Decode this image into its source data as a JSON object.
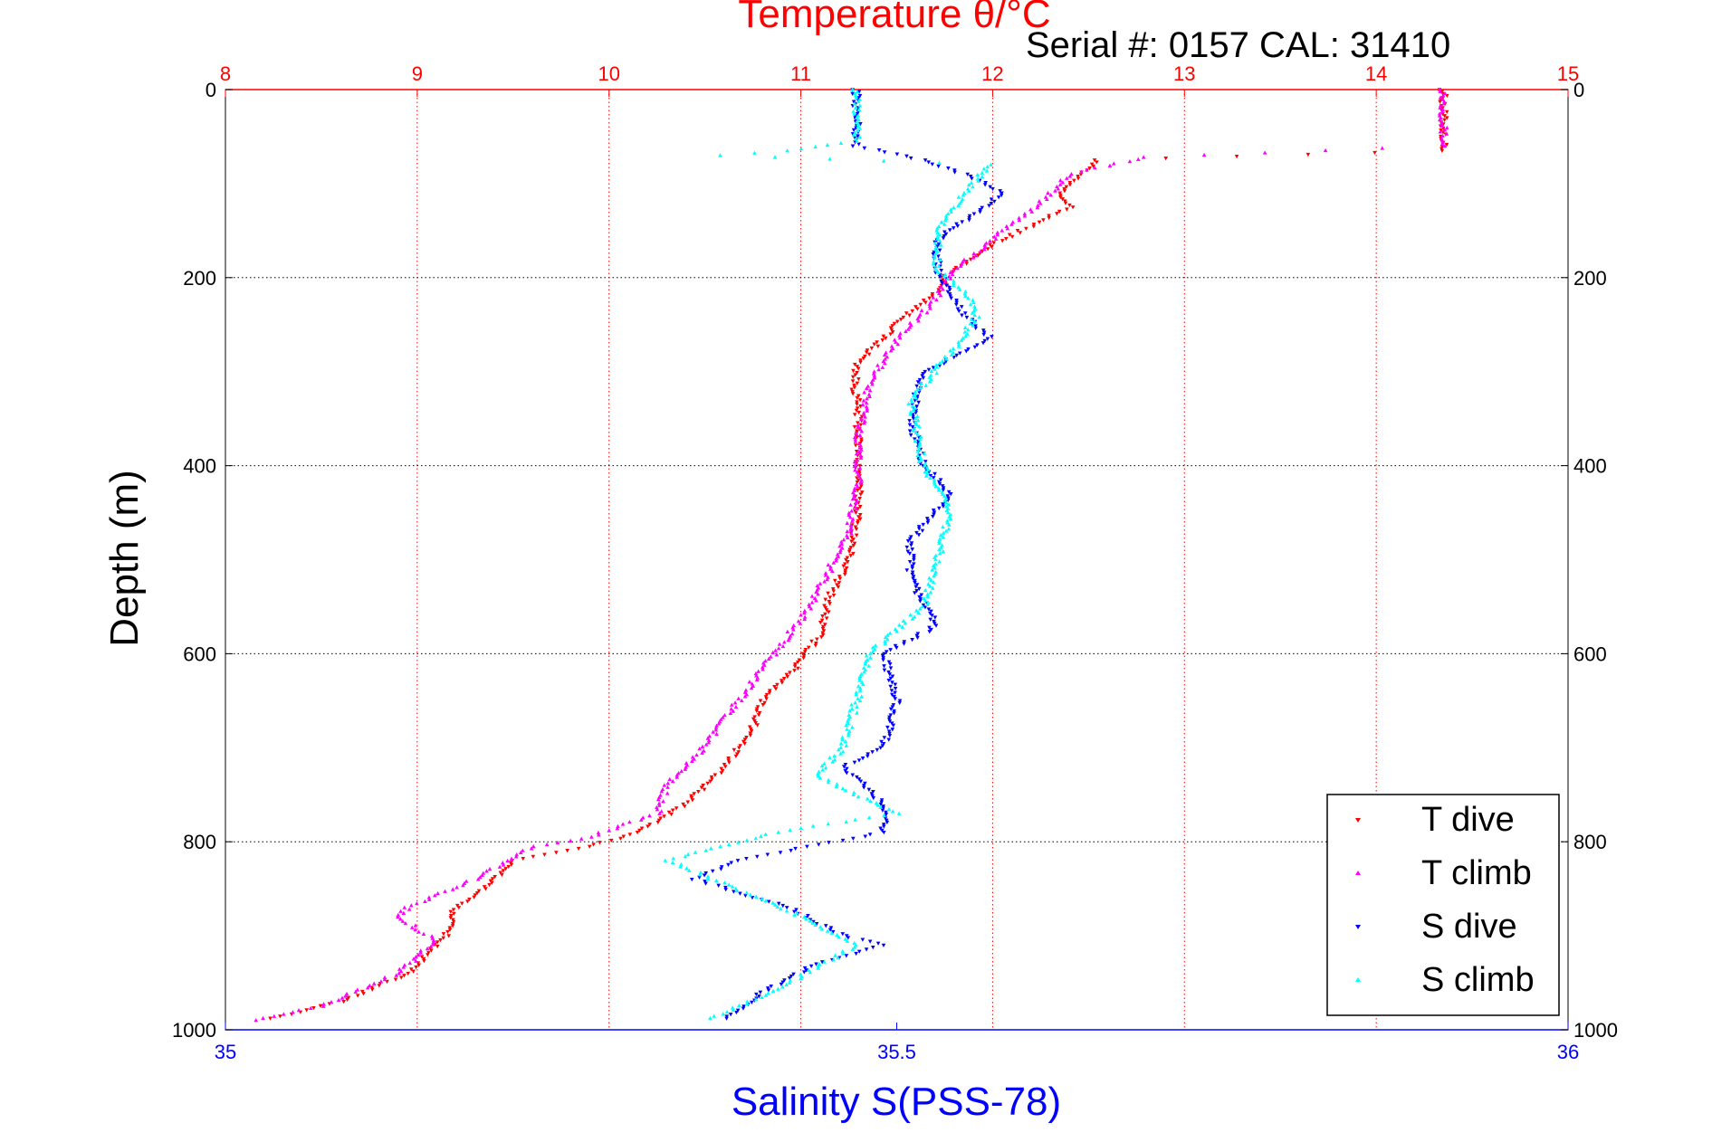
{
  "chart_data": {
    "type": "scatter",
    "title": "Temperature θ/°C",
    "subtitle": "Serial #: 0157  CAL: 31410",
    "ylabel": "Depth (m)",
    "xlabel": "Salinity S(PSS-78)",
    "temperature_axis": {
      "range": [
        8,
        15
      ],
      "ticks": [
        "8",
        "9",
        "10",
        "11",
        "12",
        "13",
        "14",
        "15"
      ],
      "color": "#ff0000"
    },
    "salinity_axis": {
      "range": [
        35,
        36
      ],
      "ticks": [
        "35",
        "35.5",
        "36"
      ],
      "color": "#0000ff"
    },
    "depth_axis": {
      "range": [
        0,
        1000
      ],
      "reversed": true,
      "ticks": [
        "0",
        "200",
        "400",
        "600",
        "800",
        "1000"
      ]
    },
    "grid": true,
    "legend": {
      "position": "bottom-right",
      "entries": [
        {
          "label": "T dive",
          "color": "#ff0000"
        },
        {
          "label": "T climb",
          "color": "#ff00ff"
        },
        {
          "label": "S dive",
          "color": "#0000ff"
        },
        {
          "label": "S climb",
          "color": "#00ffff"
        }
      ]
    },
    "series": [
      {
        "key": "T dive",
        "axis": "temperature",
        "color": "#ff0000",
        "points": [
          [
            14.35,
            0
          ],
          [
            14.35,
            30
          ],
          [
            14.35,
            65
          ],
          [
            12.55,
            75
          ],
          [
            12.45,
            90
          ],
          [
            12.35,
            110
          ],
          [
            12.4,
            125
          ],
          [
            12.15,
            150
          ],
          [
            12.0,
            165
          ],
          [
            11.85,
            185
          ],
          [
            11.75,
            200
          ],
          [
            11.72,
            215
          ],
          [
            11.55,
            240
          ],
          [
            11.45,
            260
          ],
          [
            11.3,
            290
          ],
          [
            11.28,
            310
          ],
          [
            11.3,
            350
          ],
          [
            11.3,
            400
          ],
          [
            11.3,
            450
          ],
          [
            11.25,
            500
          ],
          [
            11.15,
            540
          ],
          [
            11.1,
            580
          ],
          [
            10.95,
            620
          ],
          [
            10.8,
            650
          ],
          [
            10.75,
            680
          ],
          [
            10.6,
            720
          ],
          [
            10.4,
            760
          ],
          [
            10.15,
            790
          ],
          [
            9.9,
            805
          ],
          [
            9.5,
            820
          ],
          [
            9.35,
            850
          ],
          [
            9.2,
            870
          ],
          [
            9.15,
            900
          ],
          [
            8.95,
            940
          ],
          [
            8.6,
            970
          ],
          [
            8.2,
            990
          ]
        ]
      },
      {
        "key": "T climb",
        "axis": "temperature",
        "color": "#ff00ff",
        "points": [
          [
            14.35,
            0
          ],
          [
            14.35,
            30
          ],
          [
            14.35,
            60
          ],
          [
            12.8,
            72
          ],
          [
            12.4,
            90
          ],
          [
            12.3,
            110
          ],
          [
            12.2,
            130
          ],
          [
            12.05,
            150
          ],
          [
            11.95,
            170
          ],
          [
            11.8,
            190
          ],
          [
            11.75,
            210
          ],
          [
            11.65,
            235
          ],
          [
            11.55,
            255
          ],
          [
            11.45,
            280
          ],
          [
            11.35,
            320
          ],
          [
            11.3,
            370
          ],
          [
            11.3,
            420
          ],
          [
            11.25,
            470
          ],
          [
            11.15,
            510
          ],
          [
            11.05,
            550
          ],
          [
            10.9,
            590
          ],
          [
            10.75,
            630
          ],
          [
            10.6,
            670
          ],
          [
            10.45,
            710
          ],
          [
            10.3,
            740
          ],
          [
            10.25,
            770
          ],
          [
            9.9,
            795
          ],
          [
            9.6,
            805
          ],
          [
            9.3,
            840
          ],
          [
            8.95,
            870
          ],
          [
            8.9,
            880
          ],
          [
            9.1,
            905
          ],
          [
            8.9,
            940
          ],
          [
            8.5,
            975
          ],
          [
            8.1,
            992
          ]
        ]
      },
      {
        "key": "S dive",
        "axis": "salinity",
        "color": "#0000ff",
        "points": [
          [
            35.47,
            0
          ],
          [
            35.47,
            30
          ],
          [
            35.47,
            60
          ],
          [
            35.52,
            75
          ],
          [
            35.55,
            90
          ],
          [
            35.58,
            110
          ],
          [
            35.56,
            130
          ],
          [
            35.53,
            160
          ],
          [
            35.53,
            190
          ],
          [
            35.54,
            215
          ],
          [
            35.55,
            240
          ],
          [
            35.57,
            265
          ],
          [
            35.52,
            300
          ],
          [
            35.51,
            350
          ],
          [
            35.52,
            400
          ],
          [
            35.54,
            430
          ],
          [
            35.51,
            480
          ],
          [
            35.51,
            520
          ],
          [
            35.53,
            570
          ],
          [
            35.49,
            600
          ],
          [
            35.5,
            650
          ],
          [
            35.49,
            700
          ],
          [
            35.46,
            720
          ],
          [
            35.49,
            760
          ],
          [
            35.49,
            790
          ],
          [
            35.38,
            820
          ],
          [
            35.35,
            840
          ],
          [
            35.42,
            870
          ],
          [
            35.46,
            900
          ],
          [
            35.49,
            910
          ],
          [
            35.44,
            930
          ],
          [
            35.4,
            960
          ],
          [
            35.37,
            990
          ]
        ]
      },
      {
        "key": "S climb",
        "axis": "salinity",
        "color": "#00ffff",
        "points": [
          [
            35.47,
            0
          ],
          [
            35.47,
            30
          ],
          [
            35.47,
            55
          ],
          [
            35.42,
            65
          ],
          [
            35.37,
            70
          ],
          [
            35.57,
            80
          ],
          [
            35.55,
            110
          ],
          [
            35.53,
            150
          ],
          [
            35.53,
            190
          ],
          [
            35.55,
            215
          ],
          [
            35.56,
            240
          ],
          [
            35.54,
            280
          ],
          [
            35.51,
            330
          ],
          [
            35.52,
            400
          ],
          [
            35.54,
            450
          ],
          [
            35.53,
            500
          ],
          [
            35.52,
            550
          ],
          [
            35.48,
            600
          ],
          [
            35.47,
            650
          ],
          [
            35.46,
            700
          ],
          [
            35.44,
            730
          ],
          [
            35.5,
            770
          ],
          [
            35.41,
            790
          ],
          [
            35.33,
            820
          ],
          [
            35.38,
            850
          ],
          [
            35.43,
            880
          ],
          [
            35.47,
            910
          ],
          [
            35.42,
            950
          ],
          [
            35.36,
            990
          ]
        ]
      }
    ]
  }
}
